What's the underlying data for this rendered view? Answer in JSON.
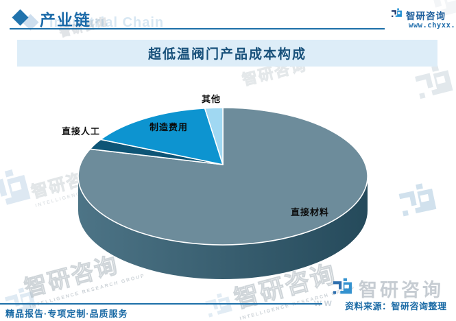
{
  "header": {
    "section_title": "产业链",
    "section_title_en": "Industrial Chain",
    "brand": "智研咨询",
    "website": "www.chyxx.com"
  },
  "chart_data": {
    "type": "pie",
    "is_3d": true,
    "title": "超低温阀门产品成本构成",
    "labels": [
      "直接材料",
      "直接人工",
      "制造费用",
      "其他"
    ],
    "values": [
      81.5,
      2.5,
      14,
      2
    ],
    "unit": "percent",
    "colors": [
      "#6d8c9b",
      "#0e5576",
      "#0d94d0",
      "#a0d8f2"
    ],
    "side_color_left": "#4d7486",
    "side_color_right": "#254a5b",
    "legend": false
  },
  "footer": {
    "tagline": "精品报告·专项定制·品质服务",
    "source": "资料来源：智研咨询整理"
  },
  "watermark": {
    "brand": "智研咨询",
    "caption": "INTELLIGENCE RESEARCH GROUP",
    "letters": "w w"
  },
  "logo_bottom": {
    "brand": "智研咨询"
  }
}
